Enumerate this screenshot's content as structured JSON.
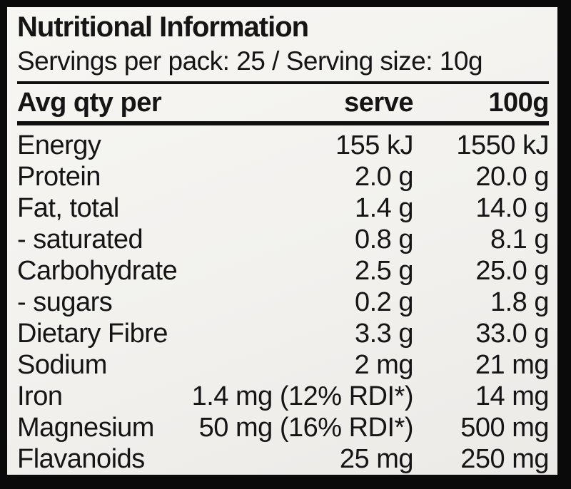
{
  "label": {
    "title": "Nutritional Information",
    "servings_line": "Servings per pack: 25 / Serving size: 10g",
    "header": {
      "name_col": "Avg qty per",
      "serve_col": "serve",
      "per_100g_col": "100g"
    },
    "rows": [
      {
        "name": "Energy",
        "serve": "155 kJ",
        "per_100g": "1550 kJ"
      },
      {
        "name": "Protein",
        "serve": "2.0 g",
        "per_100g": "20.0 g"
      },
      {
        "name": "Fat, total",
        "serve": "1.4 g",
        "per_100g": "14.0 g"
      },
      {
        "name": "- saturated",
        "serve": "0.8 g",
        "per_100g": "8.1 g"
      },
      {
        "name": "Carbohydrate",
        "serve": "2.5 g",
        "per_100g": "25.0 g"
      },
      {
        "name": "- sugars",
        "serve": "0.2 g",
        "per_100g": "1.8 g"
      },
      {
        "name": "Dietary Fibre",
        "serve": "3.3 g",
        "per_100g": "33.0 g"
      },
      {
        "name": "Sodium",
        "serve": "2 mg",
        "per_100g": "21 mg"
      },
      {
        "name": "Iron",
        "serve": "1.4 mg (12% RDI*)",
        "per_100g": "14 mg"
      },
      {
        "name": "Magnesium",
        "serve": "50 mg (16% RDI*)",
        "per_100g": "500 mg"
      },
      {
        "name": "Flavanoids",
        "serve": "25 mg",
        "per_100g": "250 mg"
      }
    ],
    "colors": {
      "frame": "#0a0a0a",
      "panel_background": "#f4f3f0",
      "text": "#151515"
    }
  }
}
